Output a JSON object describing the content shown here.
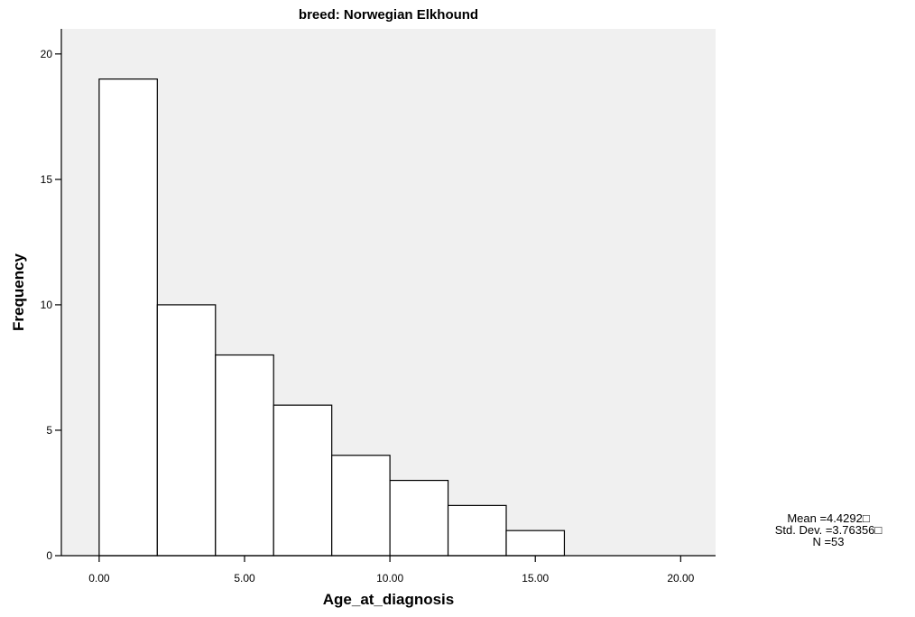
{
  "chart_data": {
    "type": "bar",
    "title": "breed: Norwegian Elkhound",
    "xlabel": "Age_at_diagnosis",
    "ylabel": "Frequency",
    "bin_width": 2,
    "bins": [
      {
        "x0": 0,
        "x1": 2,
        "value": 19
      },
      {
        "x0": 2,
        "x1": 4,
        "value": 10
      },
      {
        "x0": 4,
        "x1": 6,
        "value": 8
      },
      {
        "x0": 6,
        "x1": 8,
        "value": 6
      },
      {
        "x0": 8,
        "x1": 10,
        "value": 4
      },
      {
        "x0": 10,
        "x1": 12,
        "value": 3
      },
      {
        "x0": 12,
        "x1": 14,
        "value": 2
      },
      {
        "x0": 14,
        "x1": 16,
        "value": 1
      }
    ],
    "xlim": [
      -1.3,
      21.2
    ],
    "ylim": [
      0,
      21
    ],
    "x_ticks": [
      0,
      5,
      10,
      15,
      20
    ],
    "x_tick_labels": [
      "0.00",
      "5.00",
      "10.00",
      "15.00",
      "20.00"
    ],
    "y_ticks": [
      0,
      5,
      10,
      15,
      20
    ],
    "y_tick_labels": [
      "0",
      "5",
      "10",
      "15",
      "20"
    ],
    "grid": false,
    "plot_background": "#f0f0f0",
    "bar_fill": "#ffffff",
    "stats": {
      "mean": "Mean =4.4292□",
      "std_dev": "Std. Dev. =3.76356□",
      "n": "N =53"
    }
  }
}
